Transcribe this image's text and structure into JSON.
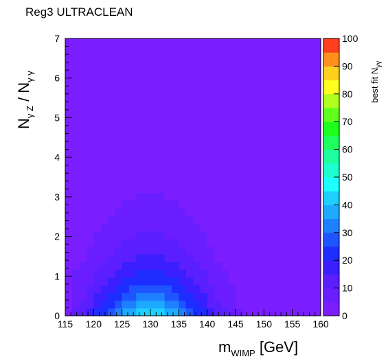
{
  "title": "Reg3 ULTRACLEAN",
  "chart_data": {
    "type": "heatmap",
    "title": "Reg3 ULTRACLEAN",
    "xlabel": "m_WIMP [GeV]",
    "ylabel": "N_γZ / N_γγ",
    "colorbar_label": "best fit N_γγ",
    "xlim": [
      115,
      160
    ],
    "ylim": [
      0,
      7
    ],
    "zlim": [
      0,
      100
    ],
    "x_ticks": [
      115,
      120,
      125,
      130,
      135,
      140,
      145,
      150,
      155,
      160
    ],
    "y_ticks": [
      0,
      1,
      2,
      3,
      4,
      5,
      6,
      7
    ],
    "z_ticks": [
      0,
      10,
      20,
      30,
      40,
      50,
      60,
      70,
      80,
      90,
      100
    ],
    "grid": false,
    "x_bins": 36,
    "y_bins": 36,
    "colorscale": "ROOT rainbow (purple → blue → cyan → green → yellow → orange → red)",
    "z_description": "peak best-fit N_γγ ≈ 45 near m_WIMP ≈ 130 GeV at N_γZ/N_γγ ≈ 0; falls off with increasing ratio and toward the mass edges"
  },
  "axis_title_parts": {
    "x_main": "m",
    "x_sub": "WIMP",
    "x_unit": " [GeV]",
    "y_n1": "N",
    "y_sub1": "γ Z",
    "y_sep": " / ",
    "y_n2": "N",
    "y_sub2": "γ γ",
    "cb_main": "best fit N",
    "cb_sub": "γγ"
  }
}
